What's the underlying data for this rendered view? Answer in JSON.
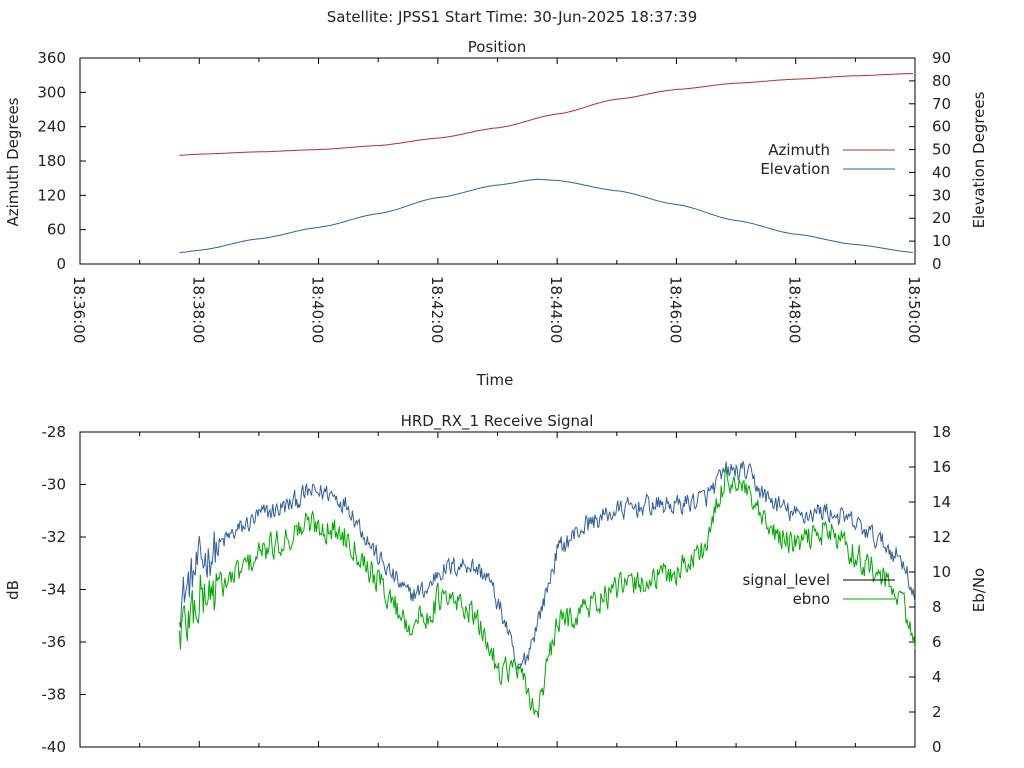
{
  "header": {
    "title": "Satellite: JPSS1    Start Time: 30-Jun-2025 18:37:39"
  },
  "chart_data": [
    {
      "type": "line",
      "title": "Position",
      "xlabel": "Time",
      "ylabel": "Azimuth Degrees",
      "y2label": "Elevation Degrees",
      "xlim": [
        "18:36:00",
        "18:50:00"
      ],
      "x_ticks": [
        "18:36:00",
        "18:38:00",
        "18:40:00",
        "18:42:00",
        "18:44:00",
        "18:46:00",
        "18:48:00",
        "18:50:00"
      ],
      "ylim": [
        0,
        360
      ],
      "y_ticks": [
        "0",
        "60",
        "120",
        "180",
        "240",
        "300",
        "360"
      ],
      "y2lim": [
        0,
        90
      ],
      "y2_ticks": [
        "0",
        "10",
        "20",
        "30",
        "40",
        "50",
        "60",
        "70",
        "80",
        "90"
      ],
      "legend_position": "right",
      "series": [
        {
          "name": "Azimuth",
          "axis": "left",
          "color": "#b03030",
          "points": [
            [
              "18:37:40",
              190
            ],
            [
              "18:38:00",
              192
            ],
            [
              "18:39:00",
              196
            ],
            [
              "18:40:00",
              200
            ],
            [
              "18:41:00",
              207
            ],
            [
              "18:42:00",
              220
            ],
            [
              "18:43:00",
              238
            ],
            [
              "18:44:00",
              262
            ],
            [
              "18:45:00",
              288
            ],
            [
              "18:46:00",
              305
            ],
            [
              "18:47:00",
              316
            ],
            [
              "18:48:00",
              323
            ],
            [
              "18:49:00",
              329
            ],
            [
              "18:50:00",
              333
            ]
          ]
        },
        {
          "name": "Elevation",
          "axis": "right",
          "color": "#3060a0",
          "points": [
            [
              "18:37:40",
              5
            ],
            [
              "18:38:00",
              6
            ],
            [
              "18:39:00",
              11
            ],
            [
              "18:40:00",
              16
            ],
            [
              "18:41:00",
              22
            ],
            [
              "18:42:00",
              29
            ],
            [
              "18:43:00",
              34.5
            ],
            [
              "18:43:40",
              37
            ],
            [
              "18:44:00",
              36.5
            ],
            [
              "18:45:00",
              32
            ],
            [
              "18:46:00",
              26
            ],
            [
              "18:47:00",
              19
            ],
            [
              "18:48:00",
              13
            ],
            [
              "18:49:00",
              8.5
            ],
            [
              "18:50:00",
              5
            ]
          ]
        }
      ]
    },
    {
      "type": "line",
      "title": "HRD_RX_1 Receive Signal",
      "xlabel": "",
      "ylabel": "dB",
      "y2label": "Eb/No",
      "xlim": [
        "18:36:00",
        "18:50:00"
      ],
      "ylim": [
        -40,
        -28
      ],
      "y_ticks": [
        "-28",
        "-30",
        "-32",
        "-34",
        "-36",
        "-38",
        "-40"
      ],
      "y2lim": [
        0,
        18
      ],
      "y2_ticks": [
        "0",
        "2",
        "4",
        "6",
        "8",
        "10",
        "12",
        "14",
        "16",
        "18"
      ],
      "legend_position": "right",
      "noisy": true,
      "series": [
        {
          "name": "signal_level",
          "axis": "left",
          "color": "#3060a0",
          "legend_color": "#000000",
          "points": [
            [
              "18:37:40",
              -34.5
            ],
            [
              "18:38:00",
              -33.0
            ],
            [
              "18:38:30",
              -32.0
            ],
            [
              "18:39:00",
              -31.2
            ],
            [
              "18:39:30",
              -30.8
            ],
            [
              "18:39:50",
              -30.3
            ],
            [
              "18:40:10",
              -30.3
            ],
            [
              "18:40:30",
              -30.8
            ],
            [
              "18:41:00",
              -32.8
            ],
            [
              "18:41:30",
              -34.2
            ],
            [
              "18:41:50",
              -34.0
            ],
            [
              "18:42:00",
              -33.3
            ],
            [
              "18:42:30",
              -33.0
            ],
            [
              "18:42:50",
              -33.5
            ],
            [
              "18:43:10",
              -35.5
            ],
            [
              "18:43:20",
              -37.2
            ],
            [
              "18:43:30",
              -36.5
            ],
            [
              "18:43:50",
              -34.0
            ],
            [
              "18:44:00",
              -32.5
            ],
            [
              "18:44:30",
              -31.5
            ],
            [
              "18:45:00",
              -31.0
            ],
            [
              "18:45:30",
              -30.8
            ],
            [
              "18:46:00",
              -30.8
            ],
            [
              "18:46:30",
              -30.5
            ],
            [
              "18:46:50",
              -29.5
            ],
            [
              "18:47:10",
              -29.5
            ],
            [
              "18:47:30",
              -30.5
            ],
            [
              "18:48:00",
              -31.2
            ],
            [
              "18:48:30",
              -31.0
            ],
            [
              "18:49:00",
              -31.5
            ],
            [
              "18:49:30",
              -32.3
            ],
            [
              "18:49:50",
              -33.0
            ],
            [
              "18:50:00",
              -34.5
            ]
          ]
        },
        {
          "name": "ebno",
          "axis": "right",
          "color": "#00aa00",
          "legend_color": "#00aa00",
          "points": [
            [
              "18:37:40",
              6.5
            ],
            [
              "18:38:00",
              8.5
            ],
            [
              "18:38:30",
              9.5
            ],
            [
              "18:39:00",
              11.0
            ],
            [
              "18:39:30",
              12.0
            ],
            [
              "18:39:50",
              12.8
            ],
            [
              "18:40:10",
              12.5
            ],
            [
              "18:40:30",
              12.0
            ],
            [
              "18:41:00",
              9.5
            ],
            [
              "18:41:30",
              7.0
            ],
            [
              "18:41:50",
              7.5
            ],
            [
              "18:42:00",
              8.5
            ],
            [
              "18:42:30",
              8.0
            ],
            [
              "18:42:50",
              6.0
            ],
            [
              "18:43:00",
              4.5
            ],
            [
              "18:43:20",
              4.5
            ],
            [
              "18:43:30",
              3.0
            ],
            [
              "18:43:40",
              2.0
            ],
            [
              "18:43:50",
              4.5
            ],
            [
              "18:44:00",
              7.0
            ],
            [
              "18:44:30",
              8.0
            ],
            [
              "18:45:00",
              9.0
            ],
            [
              "18:45:30",
              9.5
            ],
            [
              "18:46:00",
              10.0
            ],
            [
              "18:46:30",
              11.5
            ],
            [
              "18:46:50",
              15.5
            ],
            [
              "18:47:10",
              14.5
            ],
            [
              "18:47:30",
              12.5
            ],
            [
              "18:48:00",
              11.5
            ],
            [
              "18:48:30",
              12.5
            ],
            [
              "18:49:00",
              11.0
            ],
            [
              "18:49:30",
              9.5
            ],
            [
              "18:49:50",
              8.0
            ],
            [
              "18:50:00",
              5.5
            ]
          ]
        }
      ]
    }
  ]
}
